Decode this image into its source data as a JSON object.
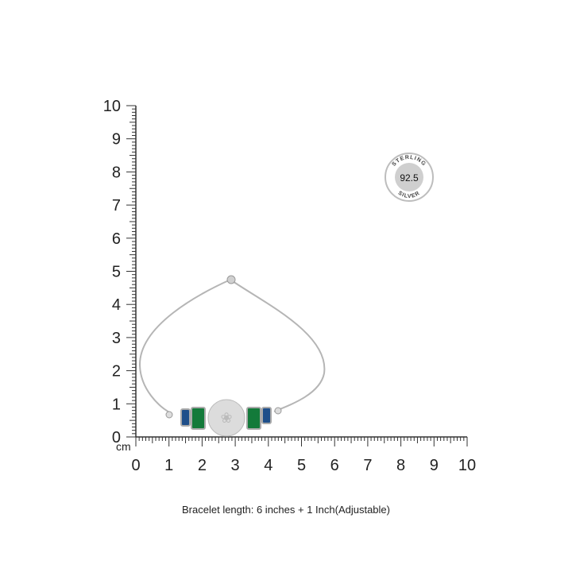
{
  "ruler": {
    "unit_label": "cm",
    "vertical_labels": [
      "0",
      "1",
      "2",
      "3",
      "4",
      "5",
      "6",
      "7",
      "8",
      "9",
      "10"
    ],
    "horizontal_labels": [
      "0",
      "1",
      "2",
      "3",
      "4",
      "5",
      "6",
      "7",
      "8",
      "9",
      "10"
    ],
    "color": "#333333"
  },
  "badge": {
    "top_text": "STERLING",
    "value": "92.5",
    "bottom_text": "SILVER",
    "color": "#bdbdbd"
  },
  "product": {
    "chain_color": "#b8b8b8",
    "stone_colors": {
      "blue": "#1f4f8a",
      "green": "#137a3a",
      "coin": "#dcdcdc"
    }
  },
  "caption": "Bracelet length: 6 inches + 1 Inch(Adjustable)"
}
